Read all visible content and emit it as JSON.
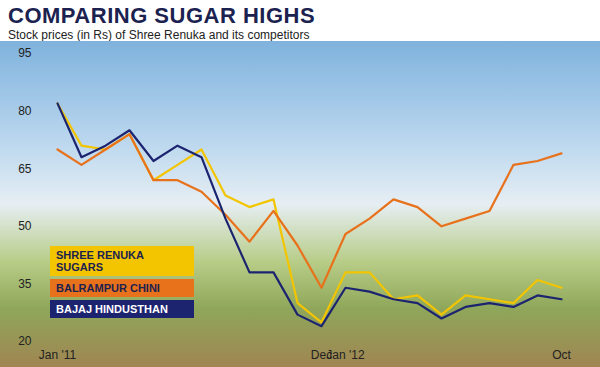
{
  "chart_data": {
    "type": "line",
    "title": "COMPARING SUGAR HIGHS",
    "subtitle": "Stock prices (in Rs) of Shree Renuka and its competitors",
    "categories": [
      "Jan '11",
      null,
      null,
      null,
      null,
      null,
      null,
      null,
      null,
      null,
      null,
      "Dec",
      "Jan '12",
      null,
      null,
      null,
      null,
      null,
      null,
      null,
      null,
      "Oct"
    ],
    "series": [
      {
        "name": "SHREE RENUKA SUGARS",
        "color": "#f2c500",
        "values": [
          82,
          71,
          70,
          74,
          62,
          66,
          70,
          58,
          55,
          57,
          30,
          25,
          38,
          38,
          31,
          32,
          27,
          32,
          31,
          30,
          36,
          34
        ]
      },
      {
        "name": "BALRAMPUR CHINI",
        "color": "#e8711c",
        "values": [
          70,
          66,
          70,
          74,
          62,
          62,
          59,
          53,
          46,
          54,
          45,
          34,
          48,
          52,
          57,
          55,
          50,
          52,
          54,
          66,
          67,
          69
        ]
      },
      {
        "name": "BAJAJ HINDUSTHAN",
        "color": "#1c2470",
        "values": [
          82,
          68,
          71,
          75,
          67,
          71,
          68,
          52,
          38,
          38,
          27,
          24,
          34,
          33,
          31,
          30,
          26,
          29,
          30,
          29,
          32,
          31
        ]
      }
    ],
    "ylim": [
      20,
      95
    ],
    "yticks": [
      20,
      35,
      50,
      65,
      80,
      95
    ],
    "grid": false,
    "legend": "bottom-left"
  }
}
